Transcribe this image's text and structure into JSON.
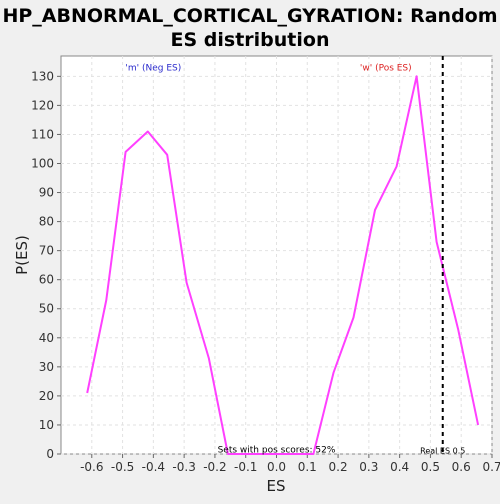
{
  "chart_data": {
    "type": "line",
    "title_line1": "HP_ABNORMAL_CORTICAL_GYRATION: Random",
    "title_line2": "ES distribution",
    "xlabel": "ES",
    "ylabel": "P(ES)",
    "xlim": [
      -0.7,
      0.7
    ],
    "ylim": [
      0,
      137
    ],
    "xticks": [
      -0.6,
      -0.5,
      -0.4,
      -0.3,
      -0.2,
      -0.1,
      0.0,
      0.1,
      0.2,
      0.3,
      0.4,
      0.5,
      0.6,
      0.7
    ],
    "xtick_labels": [
      "-0.6",
      "-0.5",
      "-0.4",
      "-0.3",
      "-0.2",
      "-0.1",
      "0.0",
      "0.1",
      "0.2",
      "0.3",
      "0.4",
      "0.5",
      "0.6",
      "0.7"
    ],
    "yticks": [
      0,
      10,
      20,
      30,
      40,
      50,
      60,
      70,
      80,
      90,
      100,
      110,
      120,
      130
    ],
    "grid": true,
    "series": [
      {
        "color": "#ff40ff",
        "x": [
          -0.615,
          -0.553,
          -0.49,
          -0.418,
          -0.355,
          -0.292,
          -0.22,
          -0.158,
          0.12,
          0.185,
          0.25,
          0.32,
          0.39,
          0.455,
          0.52,
          0.59,
          0.655
        ],
        "y": [
          21,
          53,
          104,
          111,
          103,
          59,
          33,
          0,
          0,
          28,
          47,
          84,
          99,
          130,
          73,
          43,
          10
        ]
      }
    ],
    "real_es": 0.54,
    "real_es_color": "#000000",
    "annotations": {
      "neg": {
        "text": "'m' (Neg ES)",
        "color": "#2a2acc",
        "x": -0.4,
        "y": 132
      },
      "pos": {
        "text": "'w' (Pos ES)",
        "color": "#dd2222",
        "x": 0.355,
        "y": 132
      },
      "sets": {
        "text": "Sets with pos scores: 52%",
        "color": "#000000",
        "x": 0.0,
        "y": 0.6
      },
      "real": {
        "text": "Real ES 0.5",
        "color": "#000000",
        "x": 0.54,
        "y": 0.2
      }
    }
  }
}
